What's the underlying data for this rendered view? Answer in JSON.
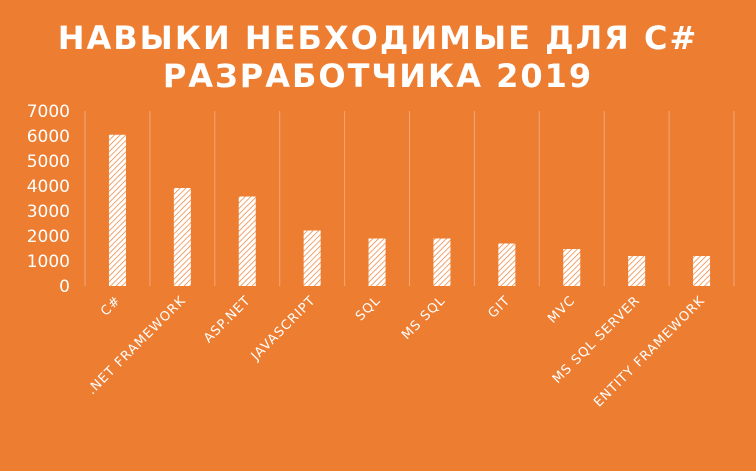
{
  "chart_data": {
    "type": "bar",
    "title_lines": [
      "НАВЫКИ НЕБХОДИМЫЕ ДЛЯ C#",
      "РАЗРАБОТЧИКА 2019"
    ],
    "categories": [
      "C#",
      ".NET FRAMEWORK",
      "ASP.NET",
      "JAVASCRIPT",
      "SQL",
      "MS SQL",
      "GIT",
      "MVC",
      "MS SQL SERVER",
      "ENTITY FRAMEWORK"
    ],
    "values": [
      6050,
      3920,
      3580,
      2220,
      1900,
      1900,
      1700,
      1480,
      1200,
      1200
    ],
    "ylim": [
      0,
      7000
    ],
    "yticks": [
      0,
      1000,
      2000,
      3000,
      4000,
      5000,
      6000,
      7000
    ],
    "grid": "vertical",
    "legend": "none"
  },
  "colors": {
    "background": "#ED7D31",
    "bar_fill": "#ffffff",
    "bar_hatch": "#ED7D31",
    "text": "#ffffff",
    "grid": "#F4A57A"
  }
}
